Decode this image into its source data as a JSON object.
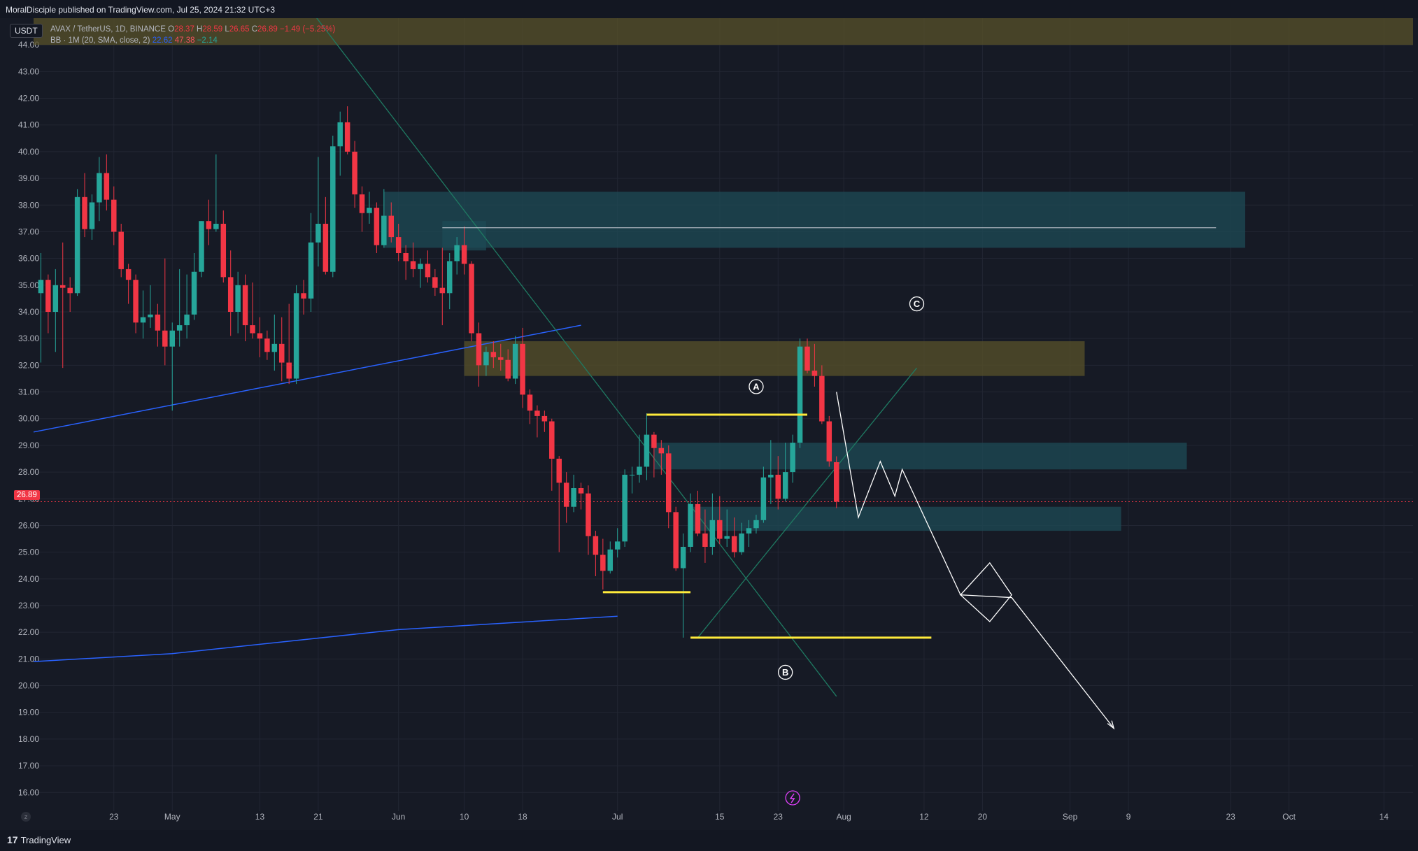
{
  "header": {
    "published_text": "MoralDisciple published on TradingView.com, Jul 25, 2024 21:32 UTC+3"
  },
  "footer": {
    "brand": "TradingView",
    "logo_icon": "tradingview-logo-icon"
  },
  "badge": {
    "currency": "USDT"
  },
  "legend": {
    "symbol": "AVAX / TetherUS, 1D, BINANCE",
    "open_label": "O",
    "open": "28.37",
    "high_label": "H",
    "high": "28.59",
    "low_label": "L",
    "low": "26.65",
    "close_label": "C",
    "close": "26.89",
    "change": "−1.49 (−5.25%)",
    "bb_label": "BB · 1M (20, SMA, close, 2)",
    "bb_basis": "22.62",
    "bb_upper": "47.38",
    "bb_lower": "−2.14"
  },
  "price_tag": "26.89",
  "colors": {
    "up": "#26a69a",
    "down": "#f23645",
    "zone_teal": "#1e4b56",
    "zone_olive": "#58512a",
    "level_yellow": "#ffeb3b",
    "bb_line": "#2962ff",
    "trend_green": "#1f7a62",
    "path_white": "#ffffff",
    "background": "#161a25"
  },
  "chart_data": {
    "type": "candlestick",
    "y_range": [
      15.3,
      45.0
    ],
    "y_ticks": [
      "16.00",
      "17.00",
      "18.00",
      "19.00",
      "20.00",
      "21.00",
      "22.00",
      "23.00",
      "24.00",
      "25.00",
      "26.00",
      "27.00",
      "28.00",
      "29.00",
      "30.00",
      "31.00",
      "32.00",
      "33.00",
      "34.00",
      "35.00",
      "36.00",
      "37.00",
      "38.00",
      "39.00",
      "40.00",
      "41.00",
      "42.00",
      "43.00",
      "44.00"
    ],
    "x_range_days": [
      "2024-04-12",
      "2024-10-18"
    ],
    "x_ticks": [
      {
        "date": "2024-04-23",
        "label": "23"
      },
      {
        "date": "2024-05-01",
        "label": "May"
      },
      {
        "date": "2024-05-13",
        "label": "13"
      },
      {
        "date": "2024-05-21",
        "label": "21"
      },
      {
        "date": "2024-06-01",
        "label": "Jun"
      },
      {
        "date": "2024-06-10",
        "label": "10"
      },
      {
        "date": "2024-06-18",
        "label": "18"
      },
      {
        "date": "2024-07-01",
        "label": "Jul"
      },
      {
        "date": "2024-07-15",
        "label": "15"
      },
      {
        "date": "2024-07-23",
        "label": "23"
      },
      {
        "date": "2024-08-01",
        "label": "Aug"
      },
      {
        "date": "2024-08-12",
        "label": "12"
      },
      {
        "date": "2024-08-20",
        "label": "20"
      },
      {
        "date": "2024-09-01",
        "label": "Sep"
      },
      {
        "date": "2024-09-09",
        "label": "9"
      },
      {
        "date": "2024-09-23",
        "label": "23"
      },
      {
        "date": "2024-10-01",
        "label": "Oct"
      },
      {
        "date": "2024-10-14",
        "label": "14"
      }
    ],
    "candles": [
      {
        "d": "2024-04-13",
        "o": 34.7,
        "h": 36.2,
        "l": 32.1,
        "c": 35.2
      },
      {
        "d": "2024-04-14",
        "o": 35.2,
        "h": 35.4,
        "l": 33.2,
        "c": 34.0
      },
      {
        "d": "2024-04-15",
        "o": 34.0,
        "h": 35.6,
        "l": 32.5,
        "c": 35.0
      },
      {
        "d": "2024-04-16",
        "o": 35.0,
        "h": 36.6,
        "l": 31.9,
        "c": 34.9
      },
      {
        "d": "2024-04-17",
        "o": 34.9,
        "h": 35.3,
        "l": 34.0,
        "c": 34.7
      },
      {
        "d": "2024-04-18",
        "o": 34.7,
        "h": 38.6,
        "l": 34.6,
        "c": 38.3
      },
      {
        "d": "2024-04-19",
        "o": 38.3,
        "h": 39.2,
        "l": 36.8,
        "c": 37.1
      },
      {
        "d": "2024-04-20",
        "o": 37.1,
        "h": 38.4,
        "l": 36.7,
        "c": 38.1
      },
      {
        "d": "2024-04-21",
        "o": 38.1,
        "h": 39.8,
        "l": 37.4,
        "c": 39.2
      },
      {
        "d": "2024-04-22",
        "o": 39.2,
        "h": 39.9,
        "l": 37.8,
        "c": 38.2
      },
      {
        "d": "2024-04-23",
        "o": 38.2,
        "h": 38.7,
        "l": 36.5,
        "c": 37.0
      },
      {
        "d": "2024-04-24",
        "o": 37.0,
        "h": 37.3,
        "l": 35.3,
        "c": 35.6
      },
      {
        "d": "2024-04-25",
        "o": 35.6,
        "h": 35.8,
        "l": 34.3,
        "c": 35.2
      },
      {
        "d": "2024-04-26",
        "o": 35.2,
        "h": 35.4,
        "l": 33.2,
        "c": 33.6
      },
      {
        "d": "2024-04-27",
        "o": 33.6,
        "h": 34.8,
        "l": 33.0,
        "c": 33.8
      },
      {
        "d": "2024-04-28",
        "o": 33.8,
        "h": 35.0,
        "l": 33.4,
        "c": 33.9
      },
      {
        "d": "2024-04-29",
        "o": 33.9,
        "h": 34.3,
        "l": 32.7,
        "c": 33.3
      },
      {
        "d": "2024-04-30",
        "o": 33.3,
        "h": 36.0,
        "l": 32.0,
        "c": 32.7
      },
      {
        "d": "2024-05-01",
        "o": 32.7,
        "h": 33.6,
        "l": 30.3,
        "c": 33.3
      },
      {
        "d": "2024-05-02",
        "o": 33.3,
        "h": 35.6,
        "l": 32.7,
        "c": 33.5
      },
      {
        "d": "2024-05-03",
        "o": 33.5,
        "h": 35.4,
        "l": 33.0,
        "c": 33.9
      },
      {
        "d": "2024-05-04",
        "o": 33.9,
        "h": 36.2,
        "l": 33.7,
        "c": 35.5
      },
      {
        "d": "2024-05-05",
        "o": 35.5,
        "h": 37.4,
        "l": 35.3,
        "c": 37.4
      },
      {
        "d": "2024-05-06",
        "o": 37.4,
        "h": 38.2,
        "l": 36.5,
        "c": 37.1
      },
      {
        "d": "2024-05-07",
        "o": 37.1,
        "h": 39.9,
        "l": 37.0,
        "c": 37.3
      },
      {
        "d": "2024-05-08",
        "o": 37.3,
        "h": 37.8,
        "l": 35.1,
        "c": 35.3
      },
      {
        "d": "2024-05-09",
        "o": 35.3,
        "h": 36.3,
        "l": 33.1,
        "c": 34.0
      },
      {
        "d": "2024-05-10",
        "o": 34.0,
        "h": 35.5,
        "l": 33.2,
        "c": 35.0
      },
      {
        "d": "2024-05-11",
        "o": 35.0,
        "h": 35.4,
        "l": 32.9,
        "c": 33.5
      },
      {
        "d": "2024-05-12",
        "o": 33.5,
        "h": 35.1,
        "l": 33.0,
        "c": 33.2
      },
      {
        "d": "2024-05-13",
        "o": 33.2,
        "h": 33.8,
        "l": 32.3,
        "c": 33.0
      },
      {
        "d": "2024-05-14",
        "o": 33.0,
        "h": 33.3,
        "l": 32.2,
        "c": 32.5
      },
      {
        "d": "2024-05-15",
        "o": 32.5,
        "h": 33.9,
        "l": 31.8,
        "c": 32.8
      },
      {
        "d": "2024-05-16",
        "o": 32.8,
        "h": 33.8,
        "l": 31.4,
        "c": 32.1
      },
      {
        "d": "2024-05-17",
        "o": 32.1,
        "h": 34.3,
        "l": 31.3,
        "c": 31.5
      },
      {
        "d": "2024-05-18",
        "o": 31.5,
        "h": 35.0,
        "l": 31.3,
        "c": 34.7
      },
      {
        "d": "2024-05-19",
        "o": 34.7,
        "h": 35.2,
        "l": 33.9,
        "c": 34.5
      },
      {
        "d": "2024-05-20",
        "o": 34.5,
        "h": 37.7,
        "l": 34.0,
        "c": 36.6
      },
      {
        "d": "2024-05-21",
        "o": 36.6,
        "h": 39.8,
        "l": 35.7,
        "c": 37.3
      },
      {
        "d": "2024-05-22",
        "o": 37.3,
        "h": 38.3,
        "l": 35.4,
        "c": 35.5
      },
      {
        "d": "2024-05-23",
        "o": 35.5,
        "h": 40.6,
        "l": 35.3,
        "c": 40.2
      },
      {
        "d": "2024-05-24",
        "o": 40.2,
        "h": 41.5,
        "l": 39.1,
        "c": 41.1
      },
      {
        "d": "2024-05-25",
        "o": 41.1,
        "h": 41.7,
        "l": 39.9,
        "c": 40.0
      },
      {
        "d": "2024-05-26",
        "o": 40.0,
        "h": 40.4,
        "l": 37.9,
        "c": 38.4
      },
      {
        "d": "2024-05-27",
        "o": 38.4,
        "h": 38.7,
        "l": 37.0,
        "c": 37.7
      },
      {
        "d": "2024-05-28",
        "o": 37.7,
        "h": 38.5,
        "l": 37.3,
        "c": 37.9
      },
      {
        "d": "2024-05-29",
        "o": 37.9,
        "h": 38.1,
        "l": 36.2,
        "c": 36.5
      },
      {
        "d": "2024-05-30",
        "o": 36.5,
        "h": 38.6,
        "l": 36.4,
        "c": 37.6
      },
      {
        "d": "2024-05-31",
        "o": 37.6,
        "h": 38.1,
        "l": 36.6,
        "c": 36.8
      },
      {
        "d": "2024-06-01",
        "o": 36.8,
        "h": 37.3,
        "l": 35.9,
        "c": 36.2
      },
      {
        "d": "2024-06-02",
        "o": 36.2,
        "h": 36.5,
        "l": 35.2,
        "c": 35.9
      },
      {
        "d": "2024-06-03",
        "o": 35.9,
        "h": 36.6,
        "l": 35.3,
        "c": 35.6
      },
      {
        "d": "2024-06-04",
        "o": 35.6,
        "h": 36.0,
        "l": 34.9,
        "c": 35.8
      },
      {
        "d": "2024-06-05",
        "o": 35.8,
        "h": 36.3,
        "l": 35.1,
        "c": 35.3
      },
      {
        "d": "2024-06-06",
        "o": 35.3,
        "h": 35.6,
        "l": 34.6,
        "c": 34.9
      },
      {
        "d": "2024-06-07",
        "o": 34.9,
        "h": 36.4,
        "l": 33.5,
        "c": 34.7
      },
      {
        "d": "2024-06-08",
        "o": 34.7,
        "h": 36.2,
        "l": 34.1,
        "c": 35.9
      },
      {
        "d": "2024-06-09",
        "o": 35.9,
        "h": 36.8,
        "l": 35.4,
        "c": 36.5
      },
      {
        "d": "2024-06-10",
        "o": 36.5,
        "h": 37.2,
        "l": 35.4,
        "c": 35.8
      },
      {
        "d": "2024-06-11",
        "o": 35.8,
        "h": 35.9,
        "l": 32.9,
        "c": 33.2
      },
      {
        "d": "2024-06-12",
        "o": 33.2,
        "h": 33.6,
        "l": 31.2,
        "c": 32.0
      },
      {
        "d": "2024-06-13",
        "o": 32.0,
        "h": 32.7,
        "l": 31.6,
        "c": 32.5
      },
      {
        "d": "2024-06-14",
        "o": 32.5,
        "h": 32.9,
        "l": 31.9,
        "c": 32.3
      },
      {
        "d": "2024-06-15",
        "o": 32.3,
        "h": 32.8,
        "l": 31.8,
        "c": 32.2
      },
      {
        "d": "2024-06-16",
        "o": 32.2,
        "h": 32.6,
        "l": 31.4,
        "c": 31.5
      },
      {
        "d": "2024-06-17",
        "o": 31.5,
        "h": 33.1,
        "l": 31.3,
        "c": 32.8
      },
      {
        "d": "2024-06-18",
        "o": 32.8,
        "h": 33.4,
        "l": 30.4,
        "c": 30.9
      },
      {
        "d": "2024-06-19",
        "o": 30.9,
        "h": 31.1,
        "l": 29.8,
        "c": 30.3
      },
      {
        "d": "2024-06-20",
        "o": 30.3,
        "h": 30.5,
        "l": 29.3,
        "c": 30.1
      },
      {
        "d": "2024-06-21",
        "o": 30.1,
        "h": 30.3,
        "l": 29.5,
        "c": 29.9
      },
      {
        "d": "2024-06-22",
        "o": 29.9,
        "h": 30.0,
        "l": 27.3,
        "c": 28.5
      },
      {
        "d": "2024-06-23",
        "o": 28.5,
        "h": 28.6,
        "l": 25.0,
        "c": 27.6
      },
      {
        "d": "2024-06-24",
        "o": 27.6,
        "h": 28.0,
        "l": 26.1,
        "c": 26.7
      },
      {
        "d": "2024-06-25",
        "o": 26.7,
        "h": 27.9,
        "l": 26.5,
        "c": 27.4
      },
      {
        "d": "2024-06-26",
        "o": 27.4,
        "h": 27.6,
        "l": 26.6,
        "c": 27.2
      },
      {
        "d": "2024-06-27",
        "o": 27.2,
        "h": 27.5,
        "l": 24.9,
        "c": 25.6
      },
      {
        "d": "2024-06-28",
        "o": 25.6,
        "h": 25.8,
        "l": 24.1,
        "c": 24.9
      },
      {
        "d": "2024-06-29",
        "o": 24.9,
        "h": 25.5,
        "l": 23.6,
        "c": 24.3
      },
      {
        "d": "2024-06-30",
        "o": 24.3,
        "h": 25.4,
        "l": 24.2,
        "c": 25.1
      },
      {
        "d": "2024-07-01",
        "o": 25.1,
        "h": 25.9,
        "l": 24.8,
        "c": 25.4
      },
      {
        "d": "2024-07-02",
        "o": 25.4,
        "h": 28.1,
        "l": 25.2,
        "c": 27.9
      },
      {
        "d": "2024-07-03",
        "o": 27.9,
        "h": 28.2,
        "l": 27.2,
        "c": 27.9
      },
      {
        "d": "2024-07-04",
        "o": 27.9,
        "h": 29.4,
        "l": 27.6,
        "c": 28.2
      },
      {
        "d": "2024-07-05",
        "o": 28.2,
        "h": 30.2,
        "l": 27.7,
        "c": 29.4
      },
      {
        "d": "2024-07-06",
        "o": 29.4,
        "h": 29.5,
        "l": 27.8,
        "c": 28.9
      },
      {
        "d": "2024-07-07",
        "o": 28.9,
        "h": 29.2,
        "l": 27.9,
        "c": 28.7
      },
      {
        "d": "2024-07-08",
        "o": 28.7,
        "h": 29.0,
        "l": 25.9,
        "c": 26.5
      },
      {
        "d": "2024-07-09",
        "o": 26.5,
        "h": 26.7,
        "l": 24.3,
        "c": 24.4
      },
      {
        "d": "2024-07-10",
        "o": 24.4,
        "h": 25.7,
        "l": 21.8,
        "c": 25.2
      },
      {
        "d": "2024-07-11",
        "o": 25.2,
        "h": 27.2,
        "l": 25.0,
        "c": 26.8
      },
      {
        "d": "2024-07-12",
        "o": 26.8,
        "h": 27.3,
        "l": 25.6,
        "c": 25.7
      },
      {
        "d": "2024-07-13",
        "o": 25.7,
        "h": 26.6,
        "l": 24.6,
        "c": 25.2
      },
      {
        "d": "2024-07-14",
        "o": 25.2,
        "h": 27.2,
        "l": 24.9,
        "c": 26.2
      },
      {
        "d": "2024-07-15",
        "o": 26.2,
        "h": 27.1,
        "l": 25.3,
        "c": 25.5
      },
      {
        "d": "2024-07-16",
        "o": 25.5,
        "h": 26.6,
        "l": 25.2,
        "c": 25.6
      },
      {
        "d": "2024-07-17",
        "o": 25.6,
        "h": 26.3,
        "l": 24.8,
        "c": 25.0
      },
      {
        "d": "2024-07-18",
        "o": 25.0,
        "h": 26.1,
        "l": 24.9,
        "c": 25.7
      },
      {
        "d": "2024-07-19",
        "o": 25.7,
        "h": 26.2,
        "l": 25.2,
        "c": 25.9
      },
      {
        "d": "2024-07-20",
        "o": 25.9,
        "h": 26.4,
        "l": 25.7,
        "c": 26.2
      },
      {
        "d": "2024-07-21",
        "o": 26.2,
        "h": 28.2,
        "l": 26.1,
        "c": 27.8
      },
      {
        "d": "2024-07-22",
        "o": 27.8,
        "h": 29.2,
        "l": 26.8,
        "c": 27.9
      },
      {
        "d": "2024-07-23",
        "o": 27.9,
        "h": 28.6,
        "l": 26.6,
        "c": 27.0
      },
      {
        "d": "2024-07-24",
        "o": 27.0,
        "h": 29.1,
        "l": 26.9,
        "c": 28.0
      },
      {
        "d": "2024-07-25",
        "o": 28.0,
        "h": 29.4,
        "l": 27.6,
        "c": 29.1
      }
    ],
    "forecast_candles": [
      {
        "d": "2024-07-26",
        "o": 29.1,
        "h": 33.0,
        "l": 28.9,
        "c": 32.7
      },
      {
        "d": "2024-07-27",
        "o": 32.7,
        "h": 33.0,
        "l": 31.7,
        "c": 31.8
      },
      {
        "d": "2024-07-28",
        "o": 31.8,
        "h": 32.8,
        "l": 31.2,
        "c": 31.6
      },
      {
        "d": "2024-07-29",
        "o": 31.6,
        "h": 32.0,
        "l": 29.8,
        "c": 29.9
      },
      {
        "d": "2024-07-30",
        "o": 29.9,
        "h": 30.1,
        "l": 28.2,
        "c": 28.4
      },
      {
        "d": "2024-07-31",
        "o": 28.37,
        "h": 28.59,
        "l": 26.65,
        "c": 26.89
      }
    ],
    "zones": [
      {
        "x0": "2024-05-30",
        "x1": "2024-09-25",
        "y0": 36.4,
        "y1": 38.5,
        "color": "teal"
      },
      {
        "x0": "2024-06-07",
        "x1": "2024-06-13",
        "y0": 36.3,
        "y1": 37.4,
        "color": "teal"
      },
      {
        "x0": "2024-06-10",
        "x1": "2024-09-03",
        "y0": 31.6,
        "y1": 32.9,
        "color": "olive"
      },
      {
        "x0": "2024-07-06",
        "x1": "2024-09-17",
        "y0": 28.1,
        "y1": 29.1,
        "color": "teal"
      },
      {
        "x0": "2024-07-11",
        "x1": "2024-09-08",
        "y0": 25.8,
        "y1": 26.7,
        "color": "teal"
      },
      {
        "x0": "2024-04-12",
        "x1": "2024-10-18",
        "y0": 44.0,
        "y1": 45.0,
        "color": "olive"
      }
    ],
    "levels": [
      {
        "x0": "2024-06-07",
        "x1": "2024-09-21",
        "y": 37.15,
        "color": "white"
      },
      {
        "x0": "2024-07-05",
        "x1": "2024-07-27",
        "y": 30.15,
        "color": "yellow"
      },
      {
        "x0": "2024-06-29",
        "x1": "2024-07-11",
        "y": 23.5,
        "color": "yellow"
      },
      {
        "x0": "2024-07-11",
        "x1": "2024-08-13",
        "y": 21.8,
        "color": "yellow"
      }
    ],
    "bb_upper_line": [
      [
        "2024-04-12",
        29.5
      ],
      [
        "2024-06-26",
        33.5
      ]
    ],
    "bb_basis_line": [
      [
        "2024-04-12",
        20.9
      ],
      [
        "2024-05-01",
        21.2
      ],
      [
        "2024-06-01",
        22.1
      ],
      [
        "2024-07-01",
        22.6
      ]
    ],
    "trend_lines": [
      [
        [
          "2024-05-18",
          46.0
        ],
        [
          "2024-07-31",
          19.6
        ]
      ],
      [
        [
          "2024-07-12",
          21.8
        ],
        [
          "2024-08-11",
          31.9
        ]
      ]
    ],
    "projection_path": [
      [
        "2024-07-31",
        31.0
      ],
      [
        "2024-08-03",
        26.3
      ],
      [
        "2024-08-06",
        28.4
      ],
      [
        "2024-08-08",
        27.1
      ],
      [
        "2024-08-09",
        28.1
      ],
      [
        "2024-08-17",
        23.4
      ],
      [
        "2024-08-21",
        24.6
      ],
      [
        "2024-08-24",
        23.4
      ],
      [
        "2024-08-21",
        22.4
      ],
      [
        "2024-08-17",
        23.4
      ],
      [
        "2024-08-24",
        23.3
      ],
      [
        "2024-09-07",
        18.4
      ]
    ],
    "wave_labels": [
      {
        "label": "A",
        "d": "2024-07-20",
        "y": 31.2
      },
      {
        "label": "B",
        "d": "2024-07-24",
        "y": 20.5
      },
      {
        "label": "C",
        "d": "2024-08-11",
        "y": 34.3
      }
    ],
    "last_price": 26.89
  }
}
